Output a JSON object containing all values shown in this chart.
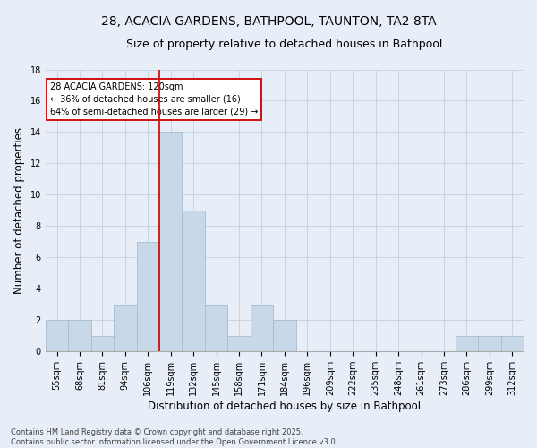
{
  "title": "28, ACACIA GARDENS, BATHPOOL, TAUNTON, TA2 8TA",
  "subtitle": "Size of property relative to detached houses in Bathpool",
  "xlabel": "Distribution of detached houses by size in Bathpool",
  "ylabel": "Number of detached properties",
  "bin_labels": [
    "55sqm",
    "68sqm",
    "81sqm",
    "94sqm",
    "106sqm",
    "119sqm",
    "132sqm",
    "145sqm",
    "158sqm",
    "171sqm",
    "184sqm",
    "196sqm",
    "209sqm",
    "222sqm",
    "235sqm",
    "248sqm",
    "261sqm",
    "273sqm",
    "286sqm",
    "299sqm",
    "312sqm"
  ],
  "counts": [
    2,
    2,
    1,
    3,
    7,
    14,
    9,
    3,
    1,
    3,
    2,
    0,
    0,
    0,
    0,
    0,
    0,
    0,
    1,
    1,
    1
  ],
  "bar_color": "#c8d8e8",
  "bar_edge_color": "#a8bcd0",
  "grid_color": "#c8d4e4",
  "bg_color": "#e8eef8",
  "property_line_color": "#cc0000",
  "annotation_text": "28 ACACIA GARDENS: 120sqm\n← 36% of detached houses are smaller (16)\n64% of semi-detached houses are larger (29) →",
  "annotation_box_color": "#ffffff",
  "annotation_box_edge": "#cc0000",
  "footer_text": "Contains HM Land Registry data © Crown copyright and database right 2025.\nContains public sector information licensed under the Open Government Licence v3.0.",
  "ylim": [
    0,
    18
  ],
  "yticks": [
    0,
    2,
    4,
    6,
    8,
    10,
    12,
    14,
    16,
    18
  ],
  "property_line_index": 5,
  "title_fontsize": 10,
  "subtitle_fontsize": 9,
  "ylabel_fontsize": 8.5,
  "xlabel_fontsize": 8.5,
  "tick_fontsize": 7,
  "annotation_fontsize": 7,
  "footer_fontsize": 6
}
